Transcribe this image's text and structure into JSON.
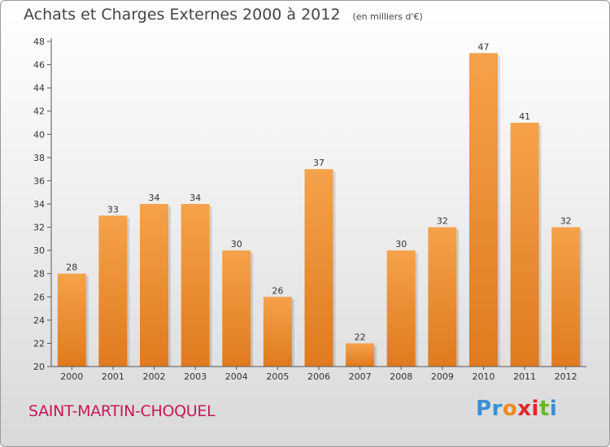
{
  "chart_data": {
    "type": "bar",
    "title": "Achats et Charges Externes 2000 à 2012",
    "subtitle": "(en milliers d'€)",
    "categories": [
      "2000",
      "2001",
      "2002",
      "2003",
      "2004",
      "2005",
      "2006",
      "2007",
      "2008",
      "2009",
      "2010",
      "2011",
      "2012"
    ],
    "values": [
      28,
      33,
      34,
      34,
      30,
      26,
      37,
      22,
      30,
      32,
      47,
      41,
      32
    ],
    "ylim": [
      20,
      48
    ],
    "yticks": [
      20,
      22,
      24,
      26,
      28,
      30,
      32,
      34,
      36,
      38,
      40,
      42,
      44,
      46,
      48
    ],
    "xlabel": "",
    "ylabel": "",
    "grid": false,
    "bar_color_light": "#f5a24a",
    "bar_color_dark": "#e07a1e"
  },
  "footer": {
    "commune": "SAINT-MARTIN-CHOQUEL",
    "commune_color": "#c8185a",
    "logo_letters": [
      {
        "char": "P",
        "color": "#3a8fd6"
      },
      {
        "char": "r",
        "color": "#3a8fd6"
      },
      {
        "char": "o",
        "color": "#f08a1c"
      },
      {
        "char": "x",
        "color": "#e2262b"
      },
      {
        "char": "i",
        "color": "#e2262b"
      },
      {
        "char": "t",
        "color": "#6cb52d"
      },
      {
        "char": "i",
        "color": "#3a8fd6"
      }
    ]
  }
}
